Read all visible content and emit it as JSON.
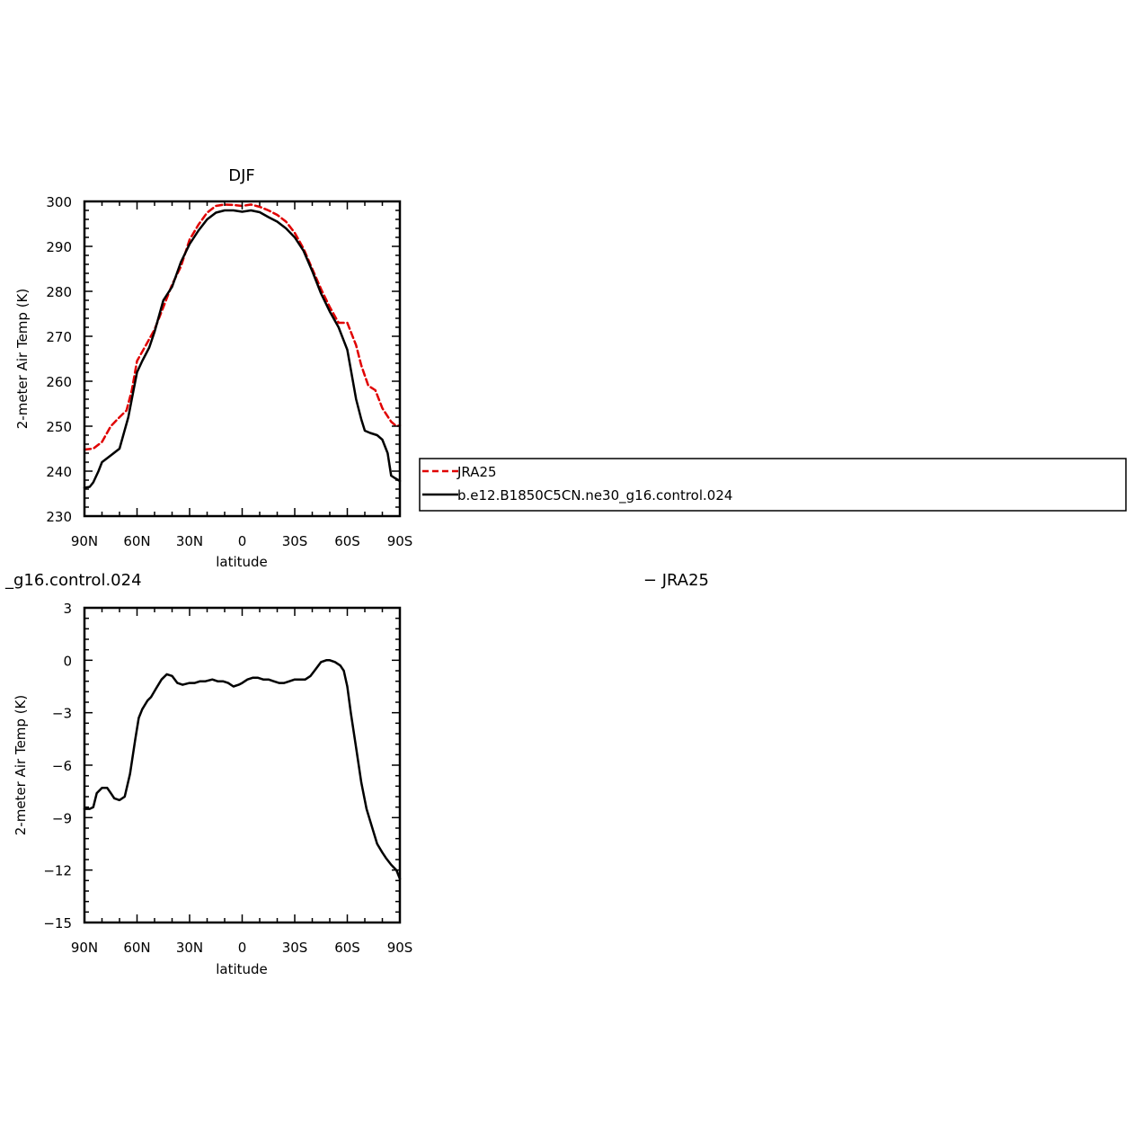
{
  "chart_data": [
    {
      "type": "line",
      "title": "DJF",
      "xlabel": "latitude",
      "ylabel": "2-meter Air Temp (K)",
      "xlim": [
        -90,
        90
      ],
      "ylim": [
        230,
        300
      ],
      "xticks": [
        -90,
        -60,
        -30,
        0,
        30,
        60,
        90
      ],
      "xtick_labels": [
        "90N",
        "60N",
        "30N",
        "0",
        "30S",
        "60S",
        "90S"
      ],
      "yticks": [
        230,
        240,
        250,
        260,
        270,
        280,
        290,
        300
      ],
      "ytick_labels": [
        "230",
        "240",
        "250",
        "260",
        "270",
        "280",
        "290",
        "300"
      ],
      "grid": false,
      "legend_position": "right",
      "series": [
        {
          "name": "JRA25",
          "color": "#e00000",
          "dash": "dashed",
          "x": [
            -90,
            -85,
            -80,
            -75,
            -70,
            -66,
            -63,
            -60,
            -55,
            -50,
            -45,
            -40,
            -35,
            -30,
            -25,
            -20,
            -15,
            -10,
            -5,
            0,
            5,
            10,
            15,
            20,
            25,
            30,
            35,
            40,
            45,
            50,
            55,
            60,
            65,
            68,
            72,
            76,
            80,
            85,
            88,
            90
          ],
          "y": [
            244.8,
            245.0,
            246.5,
            250.0,
            252.0,
            253.5,
            258.0,
            264.5,
            268.0,
            271.5,
            276.5,
            281.5,
            285.5,
            291.5,
            294.8,
            297.5,
            299.0,
            299.3,
            299.2,
            299.0,
            299.3,
            298.8,
            298.0,
            297.0,
            295.5,
            293.0,
            289.5,
            285.0,
            280.5,
            276.5,
            273.0,
            273.0,
            268.0,
            263.5,
            259.0,
            258.0,
            254.0,
            251.0,
            250.0,
            250.2
          ]
        },
        {
          "name": "b.e12.B1850C5CN.ne30_g16.control.024",
          "color": "#000000",
          "dash": "solid",
          "x": [
            -90,
            -87,
            -85,
            -82,
            -80,
            -75,
            -70,
            -65,
            -62,
            -60,
            -57,
            -53,
            -50,
            -45,
            -40,
            -35,
            -30,
            -25,
            -20,
            -15,
            -10,
            -5,
            0,
            5,
            10,
            15,
            20,
            25,
            30,
            35,
            40,
            45,
            50,
            55,
            60,
            63,
            65,
            68,
            70,
            73,
            77,
            80,
            83,
            85,
            87,
            90
          ],
          "y": [
            236.3,
            236.5,
            237.5,
            240.0,
            242.0,
            243.5,
            245.0,
            252.0,
            258.0,
            262.0,
            264.5,
            267.5,
            271.0,
            278.0,
            281.0,
            286.5,
            290.5,
            293.5,
            296.0,
            297.5,
            298.0,
            298.0,
            297.7,
            298.0,
            297.6,
            296.5,
            295.5,
            294.0,
            292.0,
            289.0,
            284.5,
            279.5,
            275.5,
            272.0,
            267.0,
            260.5,
            256.0,
            251.5,
            249.0,
            248.5,
            248.0,
            247.0,
            244.0,
            239.0,
            238.5,
            237.8
          ]
        }
      ]
    },
    {
      "type": "line",
      "title_left": "_g16.control.024",
      "title_right": "− JRA25",
      "xlabel": "latitude",
      "ylabel": "2-meter Air Temp (K)",
      "xlim": [
        -90,
        90
      ],
      "ylim": [
        -15,
        3
      ],
      "xticks": [
        -90,
        -60,
        -30,
        0,
        30,
        60,
        90
      ],
      "xtick_labels": [
        "90N",
        "60N",
        "30N",
        "0",
        "30S",
        "60S",
        "90S"
      ],
      "yticks": [
        -15,
        -12,
        -9,
        -6,
        -3,
        0,
        3
      ],
      "ytick_labels": [
        "−15",
        "−12",
        "−9",
        "−6",
        "−3",
        "0",
        "3"
      ],
      "grid": false,
      "series": [
        {
          "color": "#000000",
          "dash": "solid",
          "x": [
            -90,
            -87,
            -85,
            -83,
            -80,
            -77,
            -75,
            -73,
            -70,
            -67,
            -64,
            -61,
            -59,
            -57,
            -54,
            -52,
            -49,
            -46,
            -43,
            -40,
            -37,
            -34,
            -30,
            -27,
            -24,
            -21,
            -17,
            -14,
            -11,
            -8,
            -5,
            -2,
            0,
            3,
            6,
            9,
            12,
            15,
            18,
            21,
            24,
            27,
            30,
            33,
            36,
            39,
            42,
            45,
            48,
            50,
            53,
            56,
            58,
            60,
            62,
            65,
            68,
            71,
            74,
            77,
            80,
            82,
            85,
            88,
            90
          ],
          "y": [
            -8.5,
            -8.5,
            -8.4,
            -7.6,
            -7.3,
            -7.3,
            -7.6,
            -7.9,
            -8.0,
            -7.8,
            -6.5,
            -4.5,
            -3.3,
            -2.8,
            -2.3,
            -2.1,
            -1.6,
            -1.1,
            -0.8,
            -0.9,
            -1.3,
            -1.4,
            -1.3,
            -1.3,
            -1.2,
            -1.2,
            -1.1,
            -1.2,
            -1.2,
            -1.3,
            -1.5,
            -1.4,
            -1.3,
            -1.1,
            -1.0,
            -1.0,
            -1.1,
            -1.1,
            -1.2,
            -1.3,
            -1.3,
            -1.2,
            -1.1,
            -1.1,
            -1.1,
            -0.9,
            -0.5,
            -0.1,
            0.0,
            0.0,
            -0.1,
            -0.3,
            -0.6,
            -1.5,
            -3.0,
            -5.0,
            -7.0,
            -8.5,
            -9.5,
            -10.5,
            -11.0,
            -11.3,
            -11.7,
            -12.0,
            -12.5
          ]
        }
      ]
    }
  ]
}
